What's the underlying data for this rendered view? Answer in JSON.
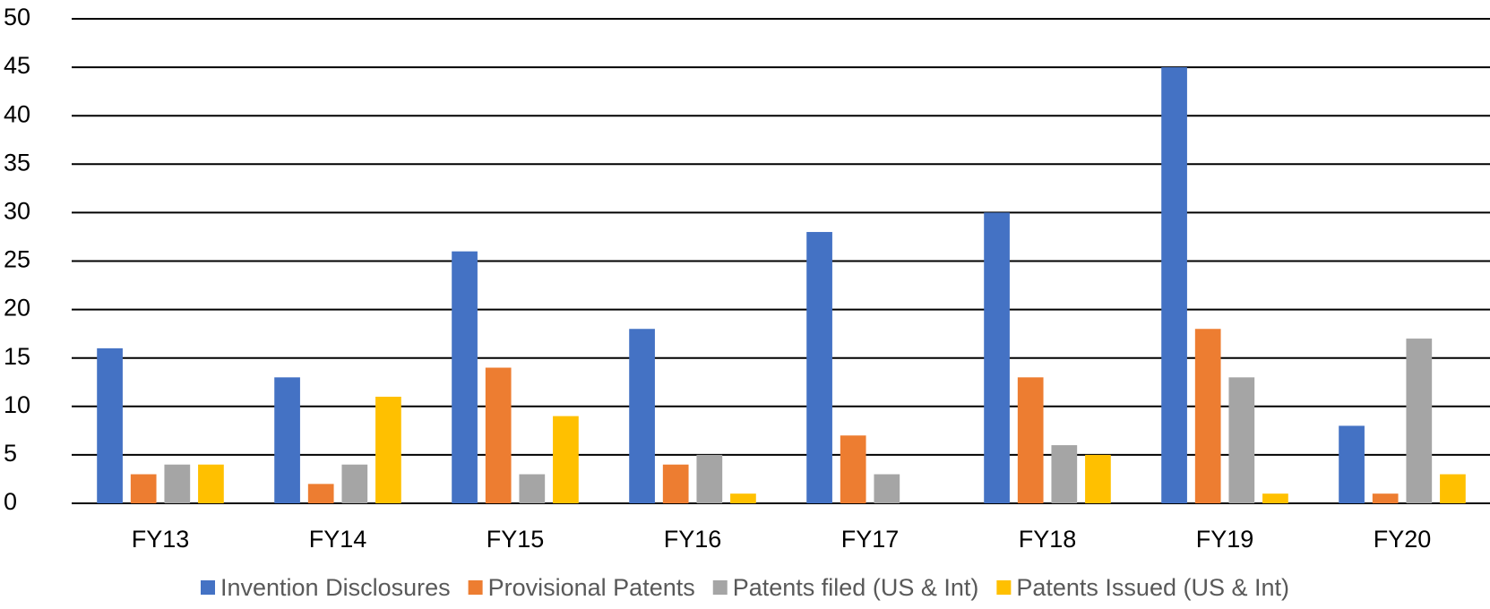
{
  "chart_data": {
    "type": "bar",
    "categories": [
      "FY13",
      "FY14",
      "FY15",
      "FY16",
      "FY17",
      "FY18",
      "FY19",
      "FY20"
    ],
    "series": [
      {
        "name": "Invention Disclosures",
        "color": "#4472c4",
        "values": [
          16,
          13,
          26,
          18,
          28,
          30,
          45,
          8
        ]
      },
      {
        "name": "Provisional Patents",
        "color": "#ed7d31",
        "values": [
          3,
          2,
          14,
          4,
          7,
          13,
          18,
          1
        ]
      },
      {
        "name": "Patents filed (US & Int)",
        "color": "#a5a5a5",
        "values": [
          4,
          4,
          3,
          5,
          3,
          6,
          13,
          17
        ]
      },
      {
        "name": "Patents Issued (US & Int)",
        "color": "#ffc000",
        "values": [
          4,
          11,
          9,
          1,
          0,
          5,
          1,
          3
        ]
      }
    ],
    "ylim": [
      0,
      50
    ],
    "yticks": [
      0,
      5,
      10,
      15,
      20,
      25,
      30,
      35,
      40,
      45,
      50
    ],
    "grid": true,
    "legend": "bottom"
  }
}
